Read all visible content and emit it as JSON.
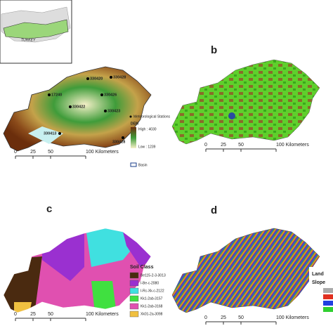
{
  "panel_a": {
    "inset_label": "TURKEY",
    "stations": [
      "330420",
      "330428",
      "330426",
      "17240",
      "330422",
      "330423",
      "330413",
      "330428"
    ],
    "legend": {
      "stations": "Meteorological Stations",
      "dem_title": "DEM",
      "high": "High : 4030",
      "low": "Low : 1239",
      "basin": "Basin"
    },
    "scale": [
      "0",
      "25",
      "50",
      "100 Kilometers"
    ]
  },
  "panel_b": {
    "label": "b",
    "scale": [
      "0",
      "25",
      "50",
      "100 Kilometers"
    ]
  },
  "panel_c": {
    "label": "c",
    "legend_title": "Soil Class",
    "classes": [
      "Be115-2-3-3013",
      "I-Be-c-2080",
      "I-Rc-Xk-c-2122",
      "Kk1-2ab-3157",
      "Kk1-2ab-3168",
      "Xk01-2a-3098"
    ],
    "scale": [
      "0",
      "25",
      "50",
      "100 Kilometers"
    ]
  },
  "panel_d": {
    "label": "d",
    "legend_title": "Land",
    "legend_subtitle": "Slope",
    "scale": [
      "0",
      "25",
      "50",
      "100 Kilometers"
    ]
  }
}
